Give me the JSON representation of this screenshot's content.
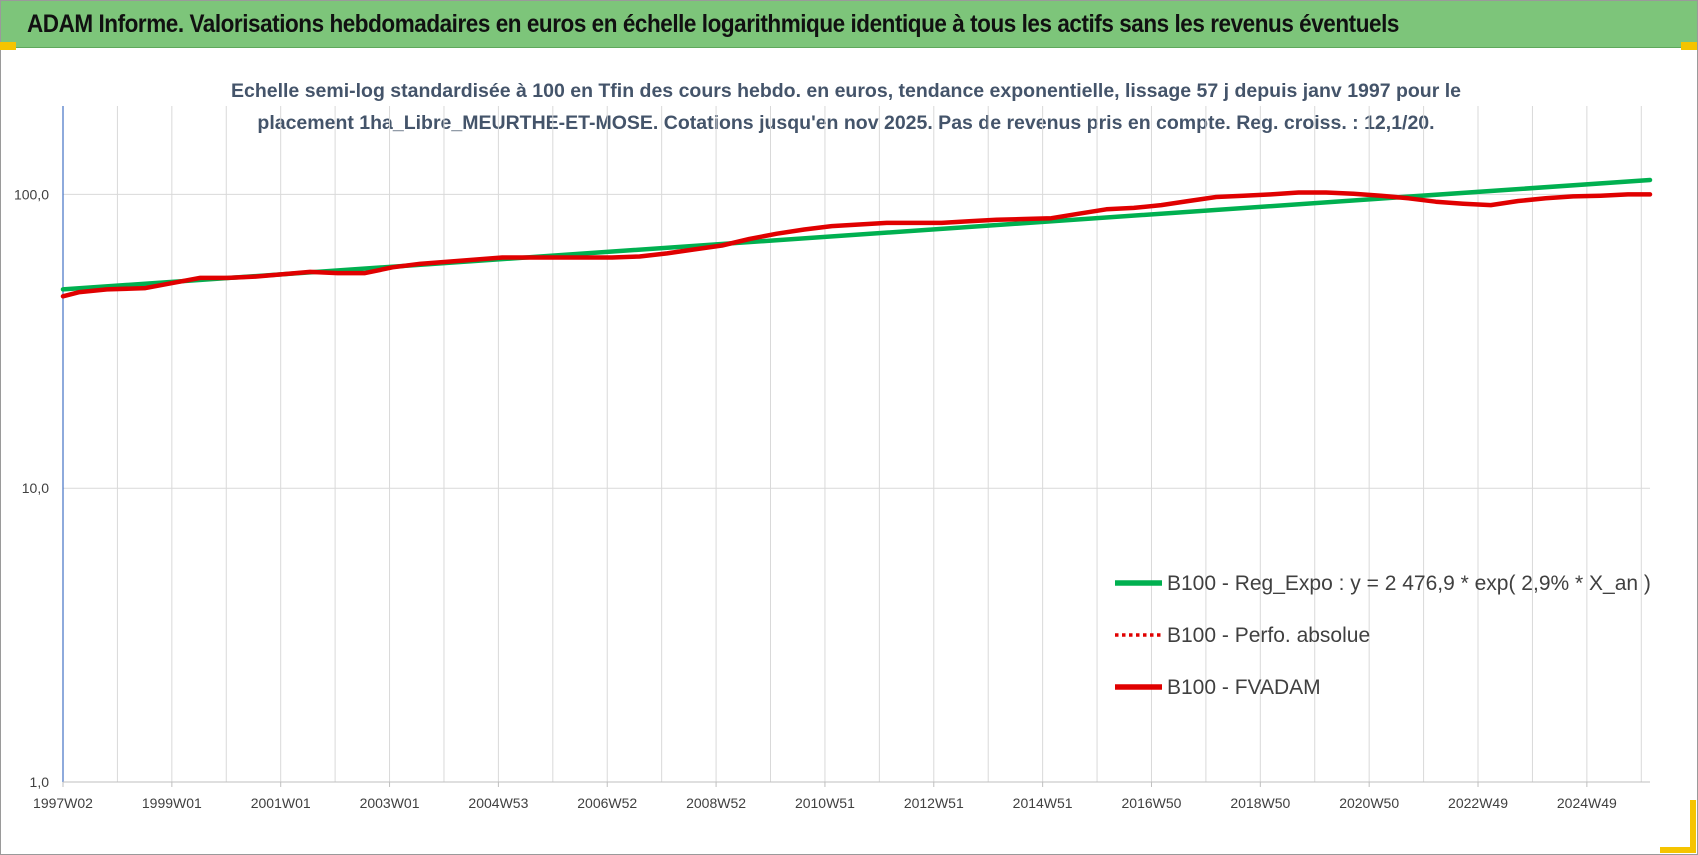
{
  "header": {
    "title": "ADAM Informe. Valorisations hebdomadaires en euros en échelle logarithmique identique à tous les actifs sans les revenus éventuels"
  },
  "chart_data": {
    "type": "line",
    "subtitle_lines": [
      "Echelle semi-log standardisée à 100 en Tfin des cours hebdo. en euros, tendance exponentielle, lissage 57 j depuis janv 1997 pour le",
      "placement 1ha_Libre_MEURTHE-ET-MOSE. Cotations jusqu'en nov 2025. Pas de revenus pris en compte. Reg. croiss. : 12,1/20."
    ],
    "y_scale": "log",
    "ylim": [
      1,
      200
    ],
    "y_ticks": [
      {
        "value": 100,
        "label": "100,0"
      },
      {
        "value": 10,
        "label": "10,0"
      },
      {
        "value": 1,
        "label": "1,0"
      }
    ],
    "x_ticks": [
      "1997W02",
      "1999W01",
      "2001W01",
      "2003W01",
      "2004W53",
      "2006W52",
      "2008W52",
      "2010W51",
      "2012W51",
      "2014W51",
      "2016W50",
      "2018W50",
      "2020W50",
      "2022W49",
      "2024W49"
    ],
    "x_range_years": [
      1997.0,
      2025.9
    ],
    "grid": "vertical",
    "legend_position": "bottom-right",
    "series": [
      {
        "name": "B100 - Reg_Expo : y = 2 476,9 * exp( 2,9% *  X_an )",
        "color": "#00b050",
        "style": "solid",
        "x": [
          1997.0,
          2025.9
        ],
        "y": [
          47.5,
          112
        ]
      },
      {
        "name": "B100 - Perfo. absolue",
        "color": "#e00000",
        "style": "dotted",
        "x": [],
        "y": []
      },
      {
        "name": "B100 - FVADAM",
        "color": "#e00000",
        "style": "solid",
        "x": [
          1997.0,
          1997.3,
          1997.8,
          1998.5,
          1999.0,
          1999.5,
          2000.0,
          2000.5,
          2001.0,
          2001.5,
          2002.0,
          2002.5,
          2003.0,
          2003.5,
          2004.0,
          2004.5,
          2005.0,
          2005.5,
          2006.0,
          2006.5,
          2007.0,
          2007.5,
          2008.0,
          2008.5,
          2009.0,
          2009.5,
          2010.0,
          2010.5,
          2011.0,
          2011.5,
          2012.0,
          2012.5,
          2013.0,
          2013.5,
          2014.0,
          2014.5,
          2015.0,
          2015.5,
          2016.0,
          2016.5,
          2017.0,
          2017.5,
          2018.0,
          2018.5,
          2019.0,
          2019.5,
          2020.0,
          2020.5,
          2021.0,
          2021.5,
          2022.0,
          2022.5,
          2023.0,
          2023.5,
          2024.0,
          2024.5,
          2025.0,
          2025.5,
          2025.9
        ],
        "y": [
          45,
          46.5,
          47.5,
          48,
          50,
          52,
          52,
          52.5,
          53.5,
          54.5,
          54,
          54,
          56.5,
          58,
          59,
          60,
          61,
          61,
          61,
          61,
          61,
          61.5,
          63,
          65,
          67,
          70.5,
          73.5,
          76,
          78,
          79,
          80,
          80,
          80,
          81,
          82,
          82.5,
          83,
          86,
          89,
          90,
          92,
          95,
          98,
          99,
          100,
          101.5,
          101.5,
          100.5,
          99,
          97,
          94.5,
          93,
          92,
          95,
          97,
          98.5,
          99,
          100,
          100
        ]
      }
    ]
  }
}
